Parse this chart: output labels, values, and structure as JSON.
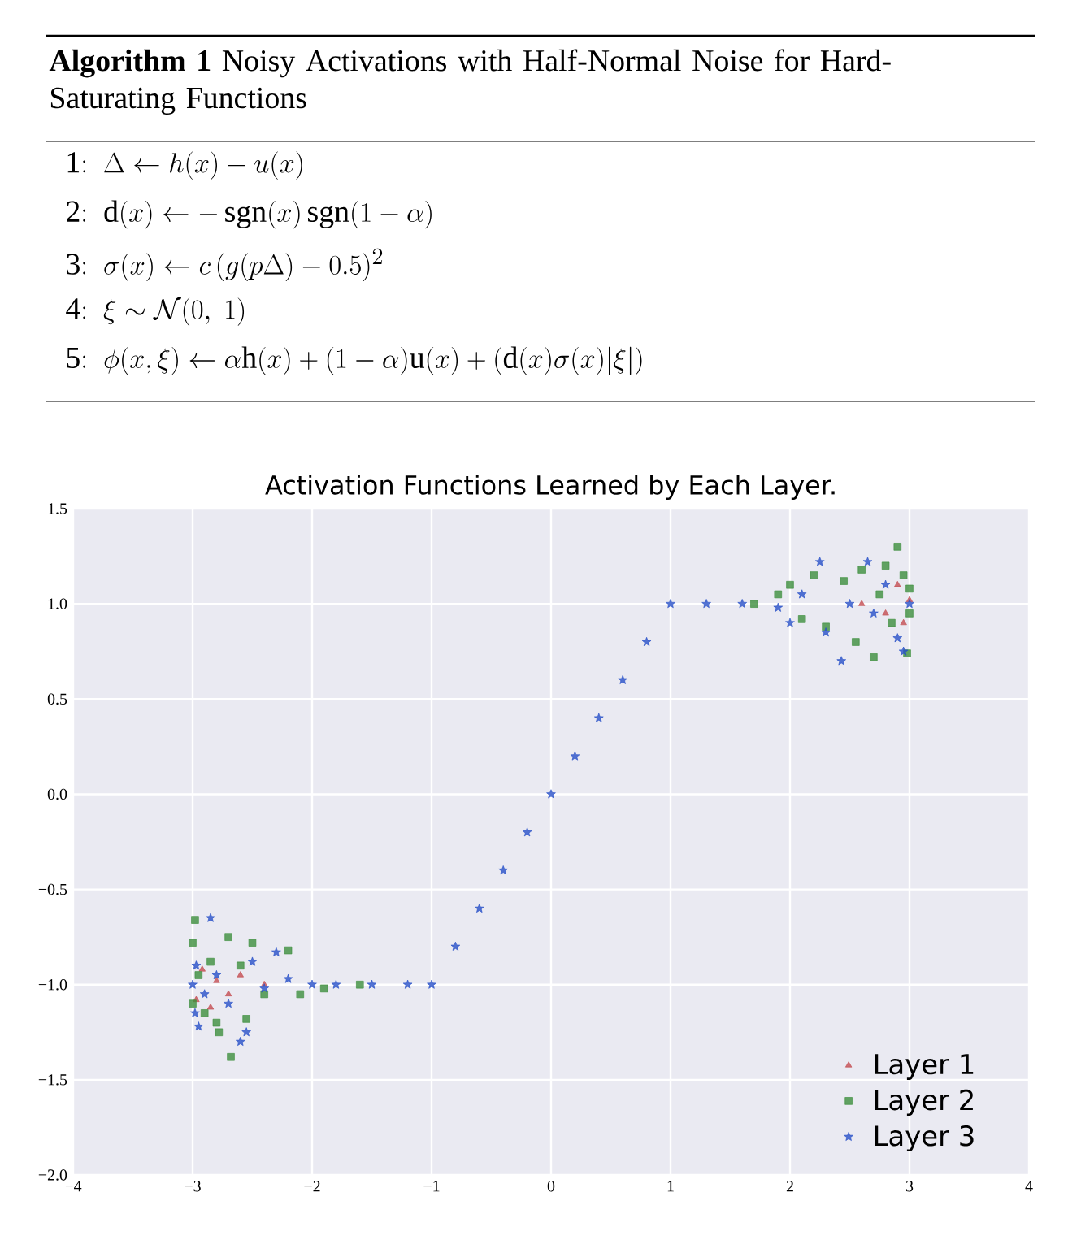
{
  "chart_data": {
    "type": "scatter",
    "title": "Activation Functions Learned by Each Layer.",
    "annotations": [
      "**Algorithm 1** Noisy Activations with Half-Normal Noise for Hard-Saturating Functions",
      "\\mathrm{1{:}}\\;\\; \\Delta \\leftarrow h(x) - u(x)",
      "\\mathrm{2{:}}\\;\\; \\mathrm{d}(x) \\leftarrow -\\,\\mathrm{sgn}(x)\\,\\mathrm{sgn}(1-\\alpha)",
      "\\mathrm{3{:}}\\;\\; \\sigma(x) \\leftarrow c\\,(g(p\\Delta) - 0.5)^2",
      "\\mathrm{4{:}}\\;\\; \\xi \\sim \\mathcal{N}(0,\\ 1)",
      "\\mathrm{5{:}}\\;\\; \\phi(x,\\xi) \\leftarrow \\alpha\\mathrm{h}(x) + (1-\\alpha)\\mathrm{u}(x) + (\\mathrm{d}(x)\\sigma(x)|\\xi|)"
    ],
    "xlim": [
      -4,
      4
    ],
    "ylim": [
      -2,
      1.5
    ],
    "xticks": [
      {
        "value": -4,
        "label": "−4"
      },
      {
        "value": -3,
        "label": "−3"
      },
      {
        "value": -2,
        "label": "−2"
      },
      {
        "value": -1,
        "label": "−1"
      },
      0,
      1,
      2,
      3,
      4
    ],
    "yticks": [
      {
        "value": -2,
        "label": "−2.0"
      },
      {
        "value": -1.5,
        "label": "−1.5"
      },
      {
        "value": -1,
        "label": "−1.0"
      },
      {
        "value": -0.5,
        "label": "−0.5"
      },
      {
        "value": 0,
        "label": "0.0"
      },
      {
        "value": 0.5,
        "label": "0.5"
      },
      {
        "value": 1,
        "label": "1.0"
      },
      {
        "value": 1.5,
        "label": "1.5"
      }
    ],
    "grid": true,
    "legend": "bottom right",
    "series": [
      {
        "name": "Layer 1",
        "color": "#c44e52",
        "marker": "triangle",
        "x": [
          -2.97,
          -2.92,
          -2.85,
          -2.8,
          -2.7,
          -2.6,
          -2.4,
          2.6,
          2.8,
          2.9,
          2.95,
          3.0
        ],
        "values": [
          -1.08,
          -0.92,
          -1.12,
          -0.98,
          -1.05,
          -0.95,
          -1.0,
          1.0,
          0.95,
          1.1,
          0.9,
          1.02
        ]
      },
      {
        "name": "Layer 2",
        "color": "#3d8f3d",
        "marker": "square",
        "x": [
          -3,
          -3,
          -2.98,
          -2.95,
          -2.9,
          -2.85,
          -2.8,
          -2.78,
          -2.7,
          -2.68,
          -2.6,
          -2.55,
          -2.5,
          -2.4,
          -2.2,
          -2.1,
          -1.9,
          -1.6,
          1.7,
          1.9,
          2.0,
          2.1,
          2.2,
          2.3,
          2.45,
          2.55,
          2.6,
          2.7,
          2.75,
          2.8,
          2.85,
          2.9,
          2.95,
          2.98,
          3.0,
          3.0
        ],
        "values": [
          -0.78,
          -1.1,
          -0.66,
          -0.95,
          -1.15,
          -0.88,
          -1.2,
          -1.25,
          -0.75,
          -1.38,
          -0.9,
          -1.18,
          -0.78,
          -1.05,
          -0.82,
          -1.05,
          -1.02,
          -1.0,
          1.0,
          1.05,
          1.1,
          0.92,
          1.15,
          0.88,
          1.12,
          0.8,
          1.18,
          0.72,
          1.05,
          1.2,
          0.9,
          1.3,
          1.15,
          0.74,
          0.95,
          1.08
        ]
      },
      {
        "name": "Layer 3",
        "color": "#2850c8",
        "marker": "star",
        "x": [
          -3,
          -2.98,
          -2.97,
          -2.95,
          -2.9,
          -2.85,
          -2.8,
          -2.7,
          -2.6,
          -2.55,
          -2.5,
          -2.4,
          -2.3,
          -2.2,
          -2.0,
          -1.8,
          -1.5,
          -1.2,
          -1.0,
          -0.8,
          -0.6,
          -0.4,
          -0.2,
          0,
          0.2,
          0.4,
          0.6,
          0.8,
          1.0,
          1.3,
          1.6,
          1.9,
          2.0,
          2.1,
          2.25,
          2.3,
          2.43,
          2.5,
          2.65,
          2.7,
          2.8,
          2.9,
          2.95,
          3.0
        ],
        "values": [
          -1.0,
          -1.15,
          -0.9,
          -1.22,
          -1.05,
          -0.65,
          -0.95,
          -1.1,
          -1.3,
          -1.25,
          -0.88,
          -1.02,
          -0.83,
          -0.97,
          -1.0,
          -1.0,
          -1.0,
          -1.0,
          -1.0,
          -0.8,
          -0.6,
          -0.4,
          -0.2,
          0,
          0.2,
          0.4,
          0.6,
          0.8,
          1.0,
          1.0,
          1.0,
          0.98,
          0.9,
          1.05,
          1.22,
          0.85,
          0.7,
          1.0,
          1.22,
          0.95,
          1.1,
          0.82,
          0.75,
          1.0
        ]
      }
    ]
  }
}
